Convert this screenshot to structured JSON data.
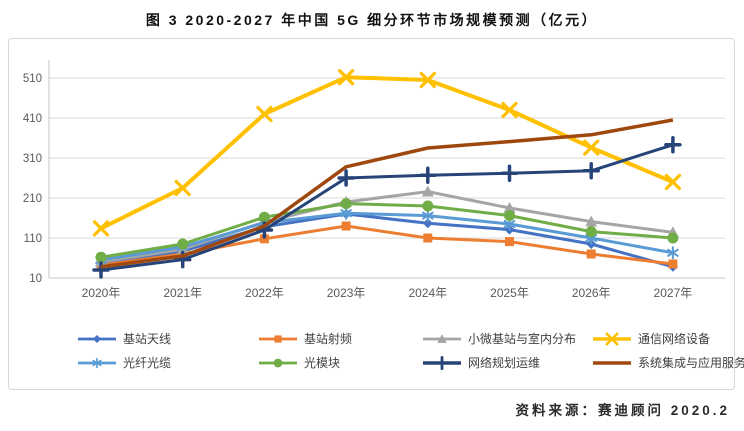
{
  "title": "图 3 2020-2027 年中国 5G 细分环节市场规模预测（亿元）",
  "source": "资料来源：赛迪顾问  2020.2",
  "chart_data": {
    "type": "line",
    "title": "图 3 2020-2027 年中国 5G 细分环节市场规模预测（亿元）",
    "unit": "亿元",
    "x_categories": [
      "2020年",
      "2021年",
      "2022年",
      "2023年",
      "2024年",
      "2025年",
      "2026年",
      "2027年"
    ],
    "yticks": [
      10,
      110,
      210,
      310,
      410,
      510
    ],
    "ylim": [
      10,
      555
    ],
    "grid": true,
    "legend_position": "bottom",
    "series": [
      {
        "name": "基站天线",
        "color": "#4472C4",
        "marker": "diamond",
        "values": [
          48,
          77,
          138,
          170,
          147,
          131,
          95,
          38
        ]
      },
      {
        "name": "基站射频",
        "color": "#ED7D31",
        "marker": "square",
        "values": [
          42,
          70,
          108,
          140,
          110,
          101,
          70,
          45
        ]
      },
      {
        "name": "小微基站与室内分布",
        "color": "#A5A5A5",
        "marker": "triangle",
        "values": [
          50,
          82,
          150,
          200,
          226,
          185,
          151,
          124
        ]
      },
      {
        "name": "通信网络设备",
        "color": "#FFC000",
        "marker": "x",
        "values": [
          134,
          235,
          420,
          512,
          505,
          430,
          336,
          250
        ]
      },
      {
        "name": "光纤光缆",
        "color": "#5B9BD5",
        "marker": "asterisk",
        "values": [
          55,
          88,
          148,
          172,
          166,
          145,
          110,
          73
        ]
      },
      {
        "name": "光模块",
        "color": "#70AD47",
        "marker": "circle",
        "values": [
          62,
          95,
          162,
          196,
          190,
          166,
          126,
          110
        ]
      },
      {
        "name": "网络规划运维",
        "color": "#264478",
        "marker": "plus",
        "values": [
          30,
          56,
          130,
          260,
          267,
          272,
          278,
          343
        ]
      },
      {
        "name": "系统集成与应用服务",
        "color": "#9E480E",
        "marker": "none",
        "values": [
          38,
          65,
          140,
          288,
          335,
          351,
          368,
          405
        ]
      }
    ]
  }
}
